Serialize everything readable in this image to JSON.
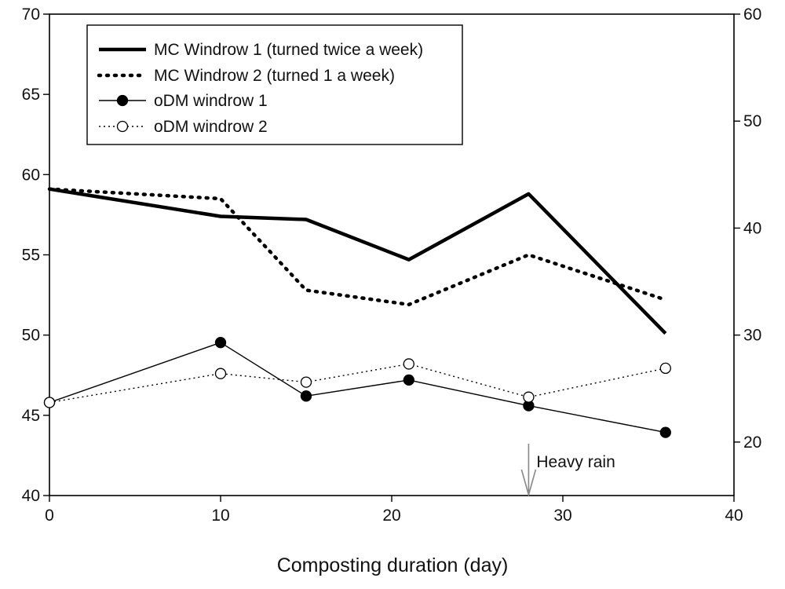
{
  "chart_data": {
    "type": "line",
    "title": "",
    "xlabel": "Composting duration (day)",
    "ylabel_left": "",
    "ylabel_right": "",
    "xlim": [
      0,
      40
    ],
    "ylim_left": [
      40,
      70
    ],
    "ylim_right": [
      15,
      60
    ],
    "x_ticks": [
      0,
      10,
      20,
      30,
      40
    ],
    "y_left_ticks": [
      40,
      45,
      50,
      55,
      60,
      65,
      70
    ],
    "y_right_ticks": [
      20,
      30,
      40,
      50,
      60
    ],
    "grid": false,
    "legend_position": "top-left",
    "series": [
      {
        "name": "MC Windrow 1 (turned twice a week)",
        "axis": "left",
        "style": "thick-solid",
        "color": "#000000",
        "x": [
          0,
          10,
          15,
          21,
          28,
          36
        ],
        "y": [
          59.1,
          57.4,
          57.2,
          54.7,
          58.8,
          50.1
        ]
      },
      {
        "name": "MC Windrow 2 (turned 1 a week)",
        "axis": "left",
        "style": "thick-dotted",
        "color": "#000000",
        "x": [
          0,
          10,
          15,
          21,
          28,
          36
        ],
        "y": [
          59.1,
          58.5,
          52.8,
          51.9,
          55.0,
          52.2
        ]
      },
      {
        "name": "oDM windrow 1",
        "axis": "right",
        "style": "thin-solid-filled-marker",
        "color": "#000000",
        "x": [
          0,
          10,
          15,
          21,
          28,
          36
        ],
        "y": [
          23.7,
          29.3,
          24.3,
          25.8,
          23.4,
          20.9
        ]
      },
      {
        "name": "oDM windrow 2",
        "axis": "right",
        "style": "thin-dotted-open-marker",
        "color": "#000000",
        "x": [
          0,
          10,
          15,
          21,
          28,
          36
        ],
        "y": [
          23.7,
          26.4,
          25.6,
          27.3,
          24.2,
          26.9
        ]
      }
    ],
    "annotations": [
      {
        "text": "Heavy rain",
        "x": 28
      }
    ]
  }
}
